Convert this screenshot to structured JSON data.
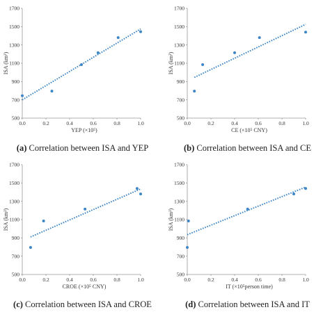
{
  "chart_data": [
    {
      "type": "scatter",
      "panel_letter": "(a)",
      "caption": "Correlation between ISA and YEP",
      "xlabel": "YEP (×10⁵)",
      "ylabel": "ISA (km²)",
      "xlim": [
        0,
        1
      ],
      "ylim": [
        500,
        1700
      ],
      "xticks": [
        "0.0",
        "0.2",
        "0.4",
        "0.6",
        "0.8",
        "1.0"
      ],
      "yticks": [
        "500",
        "700",
        "900",
        "1100",
        "1300",
        "1500",
        "1700"
      ],
      "x": [
        0.0,
        0.25,
        0.5,
        0.64,
        0.81,
        1.0
      ],
      "y": [
        745,
        795,
        1085,
        1215,
        1380,
        1445
      ],
      "trendline": {
        "x": [
          0.0,
          1.0
        ],
        "y": [
          700,
          1475
        ]
      },
      "color": "#3d86c6",
      "grid": false
    },
    {
      "type": "scatter",
      "panel_letter": "(b)",
      "caption": "Correlation between ISA and CE",
      "xlabel": "CE (×10⁵ CNY)",
      "ylabel": "ISA (km²)",
      "xlim": [
        0,
        1
      ],
      "ylim": [
        500,
        1700
      ],
      "xticks": [
        "0.0",
        "0.2",
        "0.4",
        "0.6",
        "0.8",
        "1.0"
      ],
      "yticks": [
        "500",
        "700",
        "900",
        "1100",
        "1300",
        "1500",
        "1700"
      ],
      "x": [
        0.06,
        0.13,
        0.4,
        0.61,
        1.0
      ],
      "y": [
        795,
        1085,
        1215,
        1380,
        1440
      ],
      "trendline": {
        "x": [
          0.06,
          1.0
        ],
        "y": [
          945,
          1525
        ]
      },
      "color": "#3d86c6",
      "grid": false
    },
    {
      "type": "scatter",
      "panel_letter": "(c)",
      "caption": "Correlation between ISA and CROE",
      "xlabel": "CROE (×10⁵ CNY)",
      "ylabel": "ISA (km²)",
      "xlim": [
        0,
        1
      ],
      "ylim": [
        500,
        1700
      ],
      "xticks": [
        "0.0",
        "0.2",
        "0.4",
        "0.6",
        "0.8",
        "1.0"
      ],
      "yticks": [
        "500",
        "700",
        "900",
        "1100",
        "1300",
        "1500",
        "1700"
      ],
      "x": [
        0.07,
        0.18,
        0.53,
        0.97,
        1.0
      ],
      "y": [
        795,
        1085,
        1215,
        1440,
        1380
      ],
      "trendline": {
        "x": [
          0.07,
          1.0
        ],
        "y": [
          910,
          1435
        ]
      },
      "color": "#3d86c6",
      "grid": false
    },
    {
      "type": "scatter",
      "panel_letter": "(d)",
      "caption": "Correlation between ISA and IT",
      "xlabel": "IT (×10⁵person time)",
      "ylabel": "ISA (km²)",
      "xlim": [
        0,
        1
      ],
      "ylim": [
        500,
        1700
      ],
      "xticks": [
        "0.0",
        "0.2",
        "0.4",
        "0.6",
        "0.8",
        "1.0"
      ],
      "yticks": [
        "500",
        "700",
        "900",
        "1100",
        "1300",
        "1500",
        "1700"
      ],
      "x": [
        0.0,
        0.01,
        0.51,
        0.9,
        1.0
      ],
      "y": [
        795,
        1085,
        1215,
        1380,
        1440
      ],
      "trendline": {
        "x": [
          0.0,
          1.0
        ],
        "y": [
          935,
          1455
        ]
      },
      "color": "#3d86c6",
      "grid": false
    }
  ]
}
